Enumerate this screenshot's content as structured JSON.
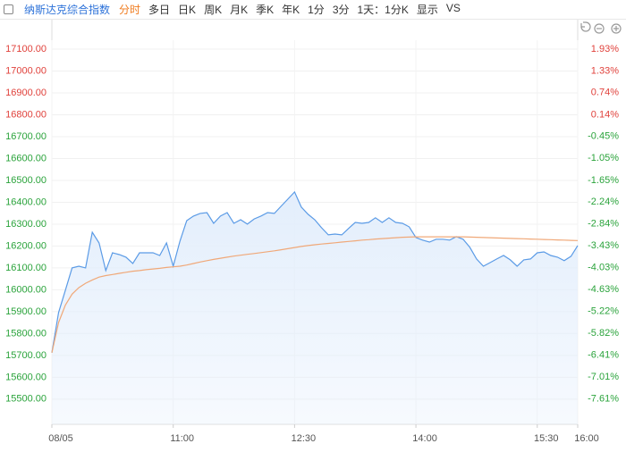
{
  "toolbar": {
    "title": "纳斯达克综合指数",
    "tabs": [
      "分时",
      "多日",
      "日K",
      "周K",
      "月K",
      "季K",
      "年K",
      "1分",
      "3分",
      "1天：1分K",
      "显示",
      "VS"
    ]
  },
  "chart_data": {
    "type": "line",
    "x": [
      "09:30",
      "09:35",
      "09:40",
      "09:45",
      "09:50",
      "09:55",
      "10:00",
      "10:05",
      "10:10",
      "10:15",
      "10:20",
      "10:25",
      "10:30",
      "10:35",
      "10:40",
      "10:45",
      "10:50",
      "10:55",
      "11:00",
      "11:05",
      "11:10",
      "11:15",
      "11:20",
      "11:25",
      "11:30",
      "11:35",
      "11:40",
      "11:45",
      "11:50",
      "11:55",
      "12:00",
      "12:05",
      "12:10",
      "12:15",
      "12:20",
      "12:25",
      "12:30",
      "12:35",
      "12:40",
      "12:45",
      "12:50",
      "12:55",
      "13:00",
      "13:05",
      "13:10",
      "13:15",
      "13:20",
      "13:25",
      "13:30",
      "13:35",
      "13:40",
      "13:45",
      "13:50",
      "13:55",
      "14:00",
      "14:05",
      "14:10",
      "14:15",
      "14:20",
      "14:25",
      "14:30",
      "14:35",
      "14:40",
      "14:45",
      "14:50",
      "14:55",
      "15:00",
      "15:05",
      "15:10",
      "15:15",
      "15:20",
      "15:25",
      "15:30",
      "15:35",
      "15:40",
      "15:45",
      "15:50",
      "15:55",
      "16:00"
    ],
    "series": [
      {
        "color": "#5b9be6",
        "fill": "#e3eefc",
        "values": [
          15712,
          15896,
          15998,
          16100,
          16108,
          16100,
          16263,
          16214,
          16088,
          16169,
          16161,
          16149,
          16120,
          16169,
          16169,
          16169,
          16157,
          16214,
          16108,
          16222,
          16316,
          16337,
          16349,
          16353,
          16304,
          16337,
          16353,
          16304,
          16320,
          16300,
          16324,
          16337,
          16353,
          16349,
          16382,
          16414,
          16447,
          16378,
          16345,
          16320,
          16284,
          16251,
          16255,
          16251,
          16280,
          16308,
          16304,
          16308,
          16329,
          16308,
          16329,
          16308,
          16304,
          16288,
          16239,
          16227,
          16218,
          16231,
          16231,
          16227,
          16243,
          16231,
          16194,
          16141,
          16108,
          16124,
          16141,
          16157,
          16137,
          16108,
          16137,
          16141,
          16169,
          16173,
          16157,
          16149,
          16133,
          16153,
          16202
        ]
      },
      {
        "color": "#f0a878",
        "values": [
          15712,
          15850,
          15930,
          15980,
          16010,
          16030,
          16045,
          16058,
          16065,
          16070,
          16075,
          16080,
          16085,
          16088,
          16092,
          16095,
          16098,
          16102,
          16105,
          16108,
          16113,
          16120,
          16127,
          16133,
          16139,
          16144,
          16149,
          16154,
          16158,
          16162,
          16166,
          16170,
          16174,
          16178,
          16183,
          16188,
          16193,
          16198,
          16202,
          16206,
          16209,
          16212,
          16215,
          16218,
          16221,
          16224,
          16227,
          16229,
          16232,
          16234,
          16236,
          16238,
          16240,
          16241,
          16242,
          16242,
          16242,
          16242,
          16242,
          16242,
          16242,
          16242,
          16241,
          16240,
          16239,
          16238,
          16237,
          16236,
          16235,
          16234,
          16233,
          16232,
          16231,
          16230,
          16229,
          16228,
          16227,
          16226,
          16225
        ]
      }
    ],
    "xlim": [
      "09:30",
      "16:00"
    ],
    "xticks": [
      {
        "value": "09:30",
        "label": "08/05"
      },
      "11:00",
      "12:30",
      "14:00",
      "15:30",
      "16:00"
    ],
    "ylim": [
      15385,
      17141
    ],
    "yticks": [
      {
        "value": 15500,
        "label": "15500.00"
      },
      {
        "value": 15600,
        "label": "15600.00"
      },
      {
        "value": 15700,
        "label": "15700.00"
      },
      {
        "value": 15800,
        "label": "15800.00"
      },
      {
        "value": 15900,
        "label": "15900.00"
      },
      {
        "value": 16000,
        "label": "16000.00"
      },
      {
        "value": 16100,
        "label": "16100.00"
      },
      {
        "value": 16200,
        "label": "16200.00"
      },
      {
        "value": 16300,
        "label": "16300.00"
      },
      {
        "value": 16400,
        "label": "16400.00"
      },
      {
        "value": 16500,
        "label": "16500.00"
      },
      {
        "value": 16600,
        "label": "16600.00"
      },
      {
        "value": 16700,
        "label": "16700.00"
      },
      {
        "value": 16800,
        "label": "16800.00"
      },
      {
        "value": 16900,
        "label": "16900.00"
      },
      {
        "value": 17000,
        "label": "17000.00"
      },
      {
        "value": 17100,
        "label": "17100.00"
      }
    ],
    "y2lim": [
      -8.3,
      2.17
    ],
    "y2ticks": [
      {
        "value": -7.61,
        "label": "-7.61%"
      },
      {
        "value": -7.01,
        "label": "-7.01%"
      },
      {
        "value": -6.41,
        "label": "-6.41%"
      },
      {
        "value": -5.82,
        "label": "-5.82%"
      },
      {
        "value": -5.22,
        "label": "-5.22%"
      },
      {
        "value": -4.63,
        "label": "-4.63%"
      },
      {
        "value": -4.03,
        "label": "-4.03%"
      },
      {
        "value": -3.43,
        "label": "-3.43%"
      },
      {
        "value": -2.84,
        "label": "-2.84%"
      },
      {
        "value": -2.24,
        "label": "-2.24%"
      },
      {
        "value": -1.65,
        "label": "-1.65%"
      },
      {
        "value": -1.05,
        "label": "-1.05%"
      },
      {
        "value": -0.45,
        "label": "-0.45%"
      },
      {
        "value": 0.14,
        "label": "0.14%"
      },
      {
        "value": 0.74,
        "label": "0.74%"
      },
      {
        "value": 1.33,
        "label": "1.33%"
      },
      {
        "value": 1.93,
        "label": "1.93%"
      }
    ],
    "grid": true
  }
}
